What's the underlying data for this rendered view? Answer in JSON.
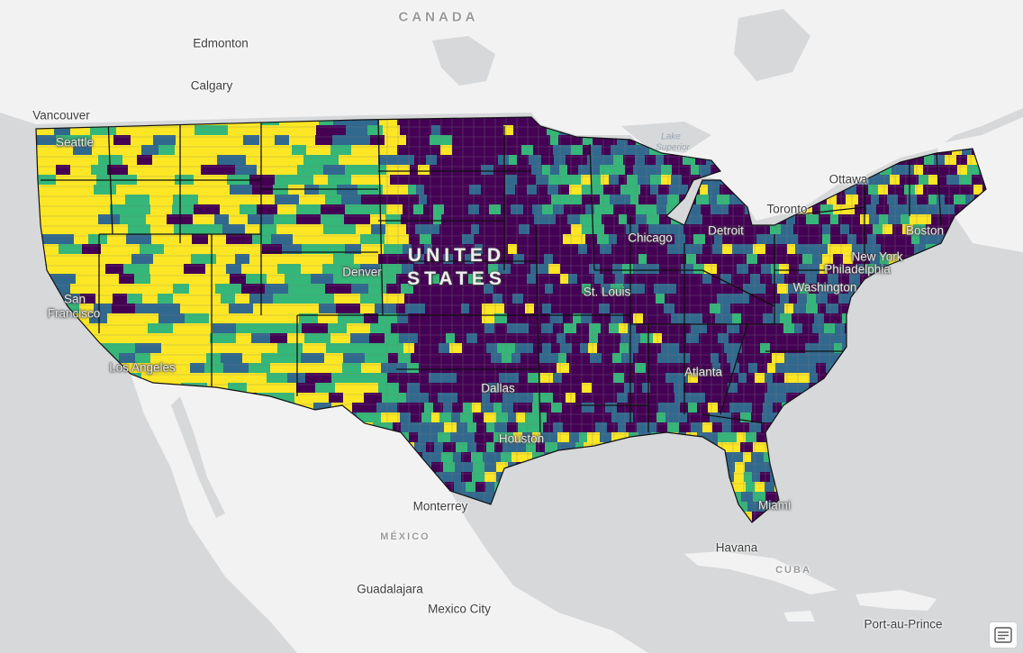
{
  "map": {
    "country_labels": [
      "CANADA",
      "UNITED STATES",
      "MÉXICO",
      "CUBA"
    ],
    "city_labels": [
      "Edmonton",
      "Calgary",
      "Vancouver",
      "Seattle",
      "San Francisco",
      "Los Angeles",
      "Denver",
      "Dallas",
      "Houston",
      "St. Louis",
      "Chicago",
      "Detroit",
      "Toronto",
      "Ottawa",
      "Boston",
      "New York",
      "Philadelphia",
      "Washington",
      "Atlanta",
      "Miami",
      "Havana",
      "Monterrey",
      "Guadalajara",
      "Mexico City",
      "Port-au-Prince"
    ],
    "water_labels": [
      "Lake Superior"
    ],
    "choropleth_classes": [
      {
        "color": "#440154"
      },
      {
        "color": "#31688e"
      },
      {
        "color": "#35b779"
      },
      {
        "color": "#fde725"
      }
    ],
    "basemap_colors": {
      "land": "#f2f2f2",
      "water": "#d6d8da",
      "county_border": "#7d7d7d",
      "state_border": "#111111"
    },
    "legend_button_icon": "legend-list-icon"
  },
  "labels": {
    "canada": "CANADA",
    "united_states_line1": "UNITED",
    "united_states_line2": "STATES",
    "mexico": "MÉXICO",
    "cuba": "CUBA",
    "edmonton": "Edmonton",
    "calgary": "Calgary",
    "vancouver": "Vancouver",
    "seattle": "Seattle",
    "san_francisco_1": "San",
    "san_francisco_2": "Francisco",
    "los_angeles": "Los Angeles",
    "denver": "Denver",
    "dallas": "Dallas",
    "houston": "Houston",
    "st_louis": "St. Louis",
    "chicago": "Chicago",
    "detroit": "Detroit",
    "toronto": "Toronto",
    "ottawa": "Ottawa",
    "boston": "Boston",
    "new_york": "New York",
    "philadelphia": "Philadelphia",
    "washington": "Washington",
    "atlanta": "Atlanta",
    "miami": "Miami",
    "havana": "Havana",
    "monterrey": "Monterrey",
    "guadalajara": "Guadalajara",
    "mexico_city": "Mexico City",
    "port_au_prince": "Port-au-Prince",
    "lake_superior_1": "Lake",
    "lake_superior_2": "Superior"
  }
}
